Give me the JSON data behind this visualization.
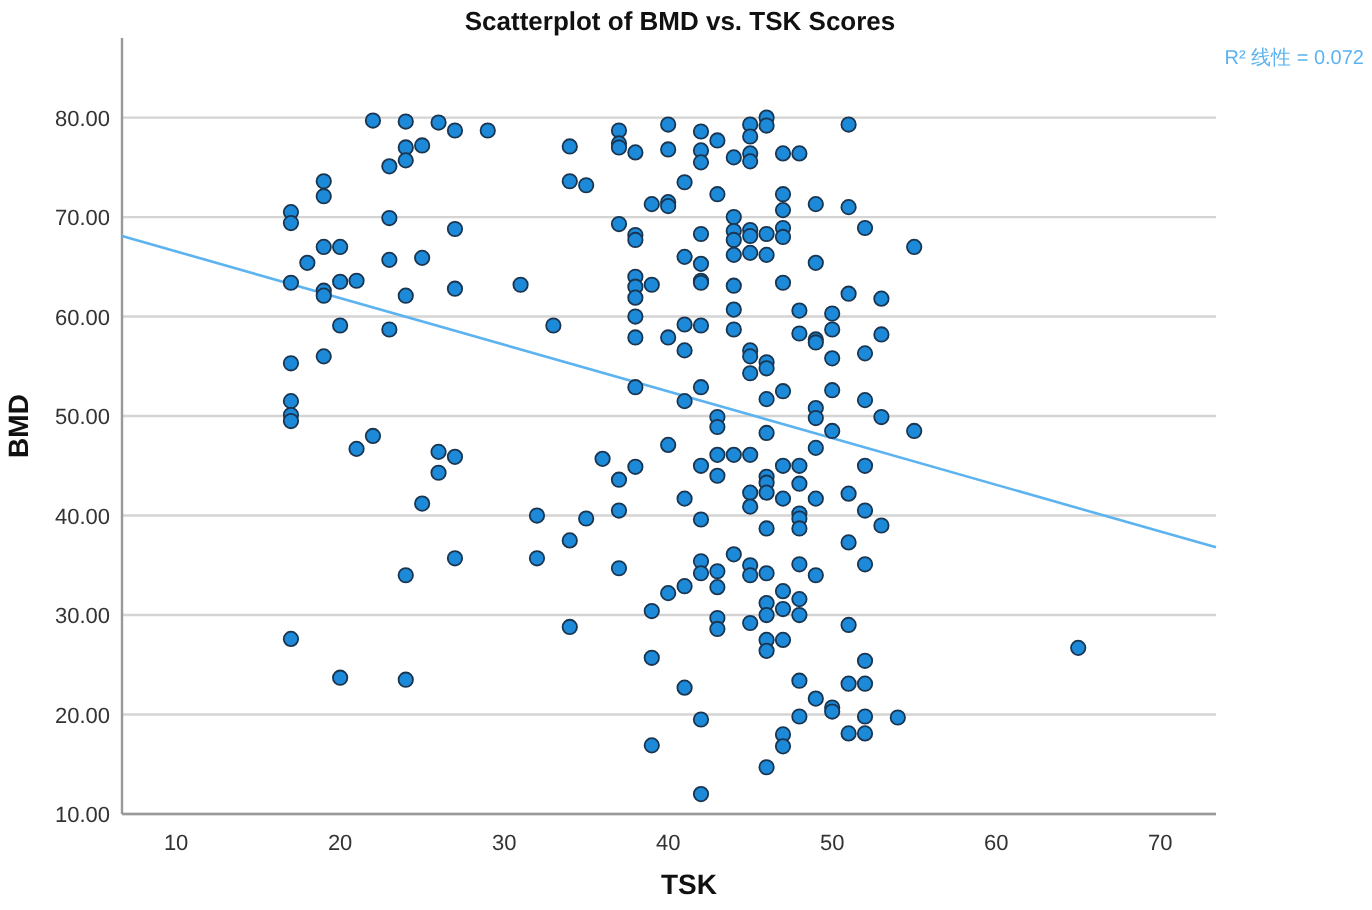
{
  "chart_data": {
    "type": "scatter",
    "title": "Scatterplot of BMD vs. TSK Scores",
    "xlabel": "TSK",
    "ylabel": "BMD",
    "annotations": [
      "R² 线性 = 0.072"
    ],
    "xlim": [
      6.7,
      73.4
    ],
    "ylim": [
      10,
      88
    ],
    "xticks": [
      10,
      20,
      30,
      40,
      50,
      60,
      70
    ],
    "yticks": [
      {
        "value": 10,
        "label": "10.00"
      },
      {
        "value": 20,
        "label": "20.00"
      },
      {
        "value": 30,
        "label": "30.00"
      },
      {
        "value": 40,
        "label": "40.00"
      },
      {
        "value": 50,
        "label": "50.00"
      },
      {
        "value": 60,
        "label": "60.00"
      },
      {
        "value": 70,
        "label": "70.00"
      },
      {
        "value": 80,
        "label": "80.00"
      }
    ],
    "grid": "y",
    "series": [
      {
        "color": "#1c8ad8",
        "marker": "circle",
        "x": [
          17,
          17,
          17,
          17,
          17,
          17,
          17,
          17,
          18,
          19,
          19,
          19,
          19,
          19,
          19,
          20,
          20,
          20,
          20,
          21,
          21,
          22,
          22,
          23,
          23,
          23,
          23,
          24,
          24,
          24,
          24,
          24,
          24,
          25,
          25,
          25,
          26,
          26,
          26,
          27,
          27,
          27,
          27,
          27,
          29,
          31,
          32,
          32,
          33,
          34,
          34,
          34,
          34,
          35,
          35,
          36,
          37,
          37,
          37,
          37,
          37,
          37,
          37,
          38,
          38,
          38,
          38,
          38,
          38,
          38,
          38,
          38,
          38,
          39,
          39,
          39,
          39,
          39,
          40,
          40,
          40,
          40,
          40,
          40,
          40,
          41,
          41,
          41,
          41,
          41,
          41,
          41,
          41,
          42,
          42,
          42,
          42,
          42,
          42,
          42,
          42,
          42,
          42,
          42,
          42,
          42,
          42,
          42,
          43,
          43,
          43,
          43,
          43,
          43,
          43,
          43,
          43,
          43,
          44,
          44,
          44,
          44,
          44,
          44,
          44,
          44,
          44,
          44,
          45,
          45,
          45,
          45,
          45,
          45,
          45,
          45,
          45,
          45,
          45,
          45,
          45,
          45,
          45,
          45,
          46,
          46,
          46,
          46,
          46,
          46,
          46,
          46,
          46,
          46,
          46,
          46,
          46,
          46,
          46,
          46,
          46,
          46,
          47,
          47,
          47,
          47,
          47,
          47,
          47,
          47,
          47,
          47,
          47,
          47,
          47,
          47,
          48,
          48,
          48,
          48,
          48,
          48,
          48,
          48,
          48,
          48,
          48,
          48,
          48,
          49,
          49,
          49,
          49,
          49,
          49,
          49,
          49,
          49,
          49,
          50,
          50,
          50,
          50,
          50,
          50,
          50,
          51,
          51,
          51,
          51,
          51,
          51,
          51,
          51,
          52,
          52,
          52,
          52,
          52,
          52,
          52,
          52,
          52,
          52,
          53,
          53,
          53,
          53,
          54,
          55,
          55,
          65
        ],
        "values": [
          70.5,
          69.4,
          63.4,
          55.3,
          51.5,
          50.1,
          49.5,
          27.6,
          65.4,
          73.6,
          72.1,
          67.0,
          62.6,
          62.1,
          56.0,
          67.0,
          63.5,
          59.1,
          23.7,
          63.6,
          46.7,
          79.7,
          48.0,
          75.1,
          69.9,
          65.7,
          58.7,
          79.6,
          77.0,
          75.7,
          62.1,
          34.0,
          23.5,
          77.2,
          65.9,
          41.2,
          79.5,
          46.4,
          44.3,
          78.7,
          68.8,
          62.8,
          45.9,
          35.7,
          78.7,
          63.2,
          40.0,
          35.7,
          59.1,
          77.1,
          73.6,
          37.5,
          28.8,
          73.2,
          39.7,
          45.7,
          78.7,
          77.4,
          77.0,
          69.3,
          43.6,
          40.5,
          34.7,
          76.5,
          68.2,
          67.7,
          64.0,
          63.0,
          61.9,
          60.0,
          57.9,
          52.9,
          44.9,
          71.3,
          63.2,
          30.4,
          25.7,
          16.9,
          79.3,
          76.8,
          71.5,
          71.1,
          57.9,
          47.1,
          32.2,
          73.5,
          66.0,
          59.2,
          56.6,
          51.5,
          41.7,
          32.9,
          22.7,
          78.6,
          76.7,
          75.5,
          68.3,
          65.3,
          63.6,
          63.4,
          59.1,
          52.9,
          45.0,
          39.6,
          35.4,
          34.2,
          19.5,
          12.0,
          77.7,
          72.3,
          49.9,
          48.9,
          46.1,
          44.0,
          34.4,
          32.8,
          29.7,
          28.6,
          76.0,
          70.0,
          68.6,
          67.7,
          66.2,
          63.1,
          60.7,
          58.7,
          46.1,
          36.1,
          79.3,
          78.1,
          76.4,
          75.6,
          68.7,
          68.1,
          66.4,
          56.6,
          56.0,
          54.3,
          46.1,
          42.3,
          40.9,
          35.0,
          34.0,
          29.2,
          80.0,
          79.2,
          68.3,
          66.2,
          55.4,
          54.8,
          51.7,
          48.3,
          43.9,
          43.3,
          42.3,
          38.7,
          34.2,
          31.2,
          30.0,
          27.5,
          26.4,
          14.7,
          76.4,
          72.3,
          70.7,
          68.9,
          68.0,
          63.4,
          52.5,
          45.0,
          41.7,
          32.4,
          30.6,
          27.5,
          18.0,
          16.8,
          76.4,
          60.6,
          58.3,
          45.0,
          43.2,
          40.2,
          39.7,
          38.7,
          35.1,
          31.6,
          30.0,
          23.4,
          19.8,
          71.3,
          65.4,
          57.7,
          57.4,
          50.8,
          49.8,
          46.8,
          41.7,
          34.0,
          21.6,
          60.3,
          58.7,
          55.8,
          52.6,
          48.5,
          20.7,
          20.3,
          79.3,
          71.0,
          62.3,
          42.2,
          37.3,
          29.0,
          23.1,
          18.1,
          68.9,
          56.3,
          51.6,
          45.0,
          40.5,
          35.1,
          25.4,
          23.1,
          19.8,
          18.1,
          61.8,
          58.2,
          49.9,
          39.0,
          19.7,
          67.0,
          48.5,
          26.7
        ]
      },
      {
        "type": "line",
        "color": "#5cb3ef",
        "x": [
          6.7,
          73.4
        ],
        "values": [
          68.1,
          36.8
        ]
      }
    ]
  }
}
